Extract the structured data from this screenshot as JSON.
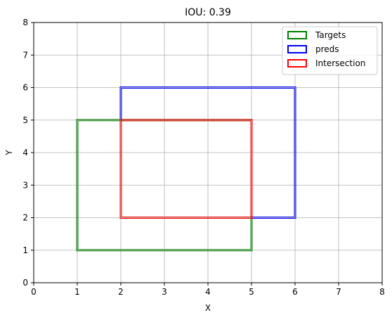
{
  "chart_data": {
    "type": "rectangles",
    "title": "IOU: 0.39",
    "xlabel": "X",
    "ylabel": "Y",
    "xlim": [
      0,
      8
    ],
    "ylim": [
      0,
      8
    ],
    "xticks": [
      0,
      1,
      2,
      3,
      4,
      5,
      6,
      7,
      8
    ],
    "yticks": [
      0,
      1,
      2,
      3,
      4,
      5,
      6,
      7,
      8
    ],
    "grid": true,
    "legend_position": "top-right",
    "series": [
      {
        "name": "Targets",
        "color": "#008000",
        "x": [
          1,
          5
        ],
        "y": [
          1,
          5
        ]
      },
      {
        "name": "preds",
        "color": "#0000ff",
        "x": [
          2,
          6
        ],
        "y": [
          2,
          6
        ]
      },
      {
        "name": "Intersection",
        "color": "#ff0000",
        "x": [
          2,
          5
        ],
        "y": [
          2,
          5
        ]
      }
    ]
  }
}
